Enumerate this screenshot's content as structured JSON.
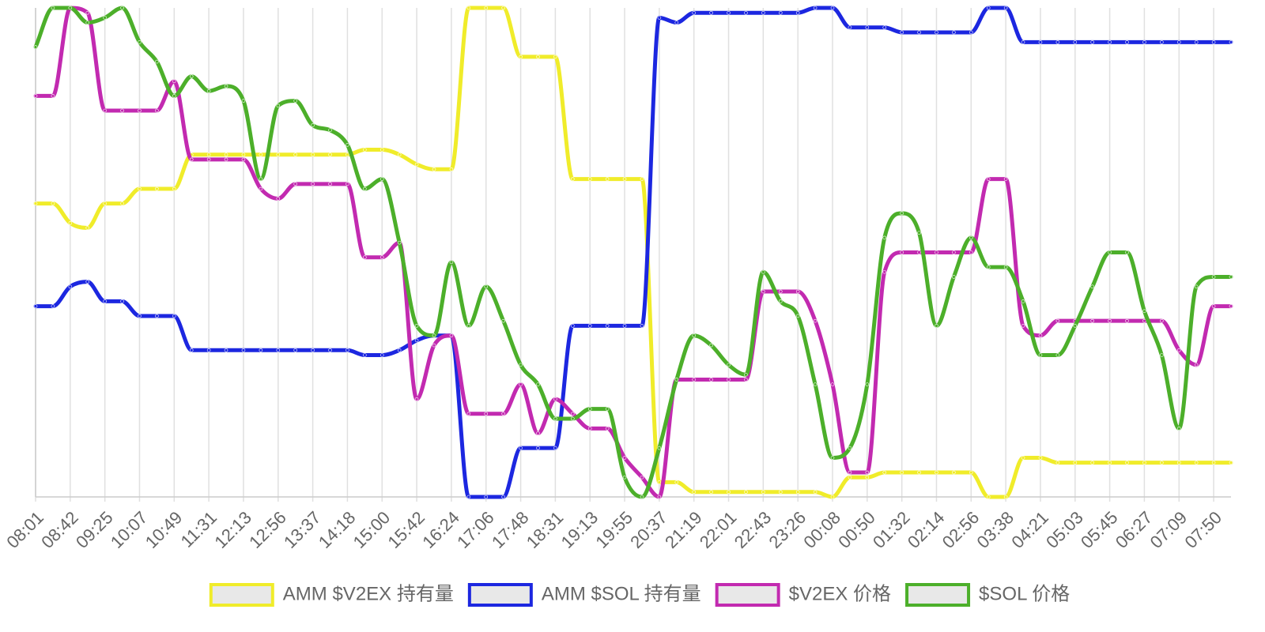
{
  "chart_data": {
    "type": "line",
    "categories": [
      "08:01",
      null,
      "08:42",
      null,
      "09:25",
      null,
      "10:07",
      null,
      "10:49",
      null,
      "11:31",
      null,
      "12:13",
      null,
      "12:56",
      null,
      "13:37",
      null,
      "14:18",
      null,
      "15:00",
      null,
      "15:42",
      null,
      "16:24",
      null,
      "17:06",
      null,
      "17:48",
      null,
      "18:31",
      null,
      "19:13",
      null,
      "19:55",
      null,
      "20:37",
      null,
      "21:19",
      null,
      "22:01",
      null,
      "22:43",
      null,
      "23:26",
      null,
      "00:08",
      null,
      "00:50",
      null,
      "01:32",
      null,
      "02:14",
      null,
      "02:56",
      null,
      "03:38",
      null,
      "04:21",
      null,
      "05:03",
      null,
      "05:45",
      null,
      "06:27",
      null,
      "07:09",
      null,
      "07:50",
      null
    ],
    "ylim": [
      0,
      100
    ],
    "grid": true,
    "legend": "bottom",
    "series": [
      {
        "name": "AMM $V2EX 持有量",
        "color": "#f0ec2a",
        "values": [
          60,
          60,
          56,
          55,
          60,
          60,
          63,
          63,
          63,
          70,
          70,
          70,
          70,
          70,
          70,
          70,
          70,
          70,
          70,
          71,
          71,
          70,
          68,
          67,
          67,
          100,
          100,
          100,
          90,
          90,
          90,
          65,
          65,
          65,
          65,
          65,
          3,
          3,
          1,
          1,
          1,
          1,
          1,
          1,
          1,
          1,
          0,
          4,
          4,
          5,
          5,
          5,
          5,
          5,
          5,
          0,
          0,
          8,
          8,
          7,
          7,
          7,
          7,
          7,
          7,
          7,
          7,
          7,
          7,
          7
        ]
      },
      {
        "name": "AMM $SOL 持有量",
        "color": "#1c27e0",
        "values": [
          39,
          39,
          43,
          44,
          40,
          40,
          37,
          37,
          37,
          30,
          30,
          30,
          30,
          30,
          30,
          30,
          30,
          30,
          30,
          29,
          29,
          30,
          32,
          33,
          33,
          0,
          0,
          0,
          10,
          10,
          10,
          35,
          35,
          35,
          35,
          35,
          98,
          97,
          99,
          99,
          99,
          99,
          99,
          99,
          99,
          100,
          100,
          96,
          96,
          96,
          95,
          95,
          95,
          95,
          95,
          100,
          100,
          93,
          93,
          93,
          93,
          93,
          93,
          93,
          93,
          93,
          93,
          93,
          93,
          93
        ]
      },
      {
        "name": "$V2EX 价格",
        "color": "#c22ab0",
        "values": [
          82,
          82,
          100,
          99,
          79,
          79,
          79,
          79,
          85,
          69,
          69,
          69,
          69,
          63,
          61,
          64,
          64,
          64,
          64,
          49,
          49,
          52,
          20,
          31,
          33,
          17,
          17,
          17,
          23,
          13,
          20,
          17,
          14,
          14,
          8,
          4,
          0,
          24,
          24,
          24,
          24,
          24,
          42,
          42,
          42,
          36,
          23,
          5,
          5,
          46,
          50,
          50,
          50,
          50,
          50,
          65,
          65,
          35,
          33,
          36,
          36,
          36,
          36,
          36,
          36,
          36,
          30,
          27,
          39,
          39
        ]
      },
      {
        "name": "$SOL 价格",
        "color": "#4caf2a",
        "values": [
          92,
          100,
          100,
          97,
          98,
          100,
          93,
          89,
          82,
          86,
          83,
          84,
          81,
          65,
          80,
          81,
          76,
          75,
          72,
          63,
          65,
          52,
          35,
          33,
          48,
          35,
          43,
          36,
          27,
          23,
          16,
          16,
          18,
          18,
          4,
          0,
          10,
          24,
          33,
          31,
          27,
          25,
          46,
          40,
          37,
          23,
          8,
          10,
          23,
          53,
          58,
          54,
          35,
          45,
          53,
          47,
          47,
          40,
          29,
          29,
          35,
          43,
          50,
          50,
          38,
          29,
          14,
          43,
          45,
          45
        ]
      }
    ]
  }
}
